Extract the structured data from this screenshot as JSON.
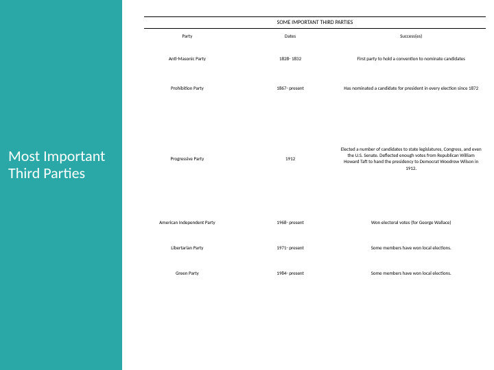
{
  "sidebar": {
    "title": "Most Important Third Parties"
  },
  "table": {
    "caption": "SOME IMPORTANT THIRD PARTIES",
    "headers": {
      "party": "Party",
      "dates": "Dates",
      "success": "Success(es)"
    },
    "rows": [
      {
        "party": "Anti-Masonic Party",
        "dates": "1828- 1832",
        "success": "First party to hold a convention to nominate candidates"
      },
      {
        "party": "Prohibition Party",
        "dates": "1867- present",
        "success": "Has nominated a candidate for president in every election since 1872"
      },
      {
        "party": "Progressive Party",
        "dates": "1912",
        "success": "Elected a number of candidates to state legislatures, Congress, and even the U.S. Senate. Deflected enough votes from Republican William Howard Taft to hand the presidency to Democrat Woodrow Wilson in 1912."
      },
      {
        "party": "American Independent Party",
        "dates": "1968- present",
        "success": "Won electoral votes (for George Wallace)"
      },
      {
        "party": "Libertarian Party",
        "dates": "1971- present",
        "success": "Some members have won local elections."
      },
      {
        "party": "Green Party",
        "dates": "1984- present",
        "success": "Some members have won local elections."
      }
    ]
  },
  "colors": {
    "sidebar_bg": "#2aa8a8",
    "text": "#000000",
    "sidebar_text": "#ffffff"
  }
}
